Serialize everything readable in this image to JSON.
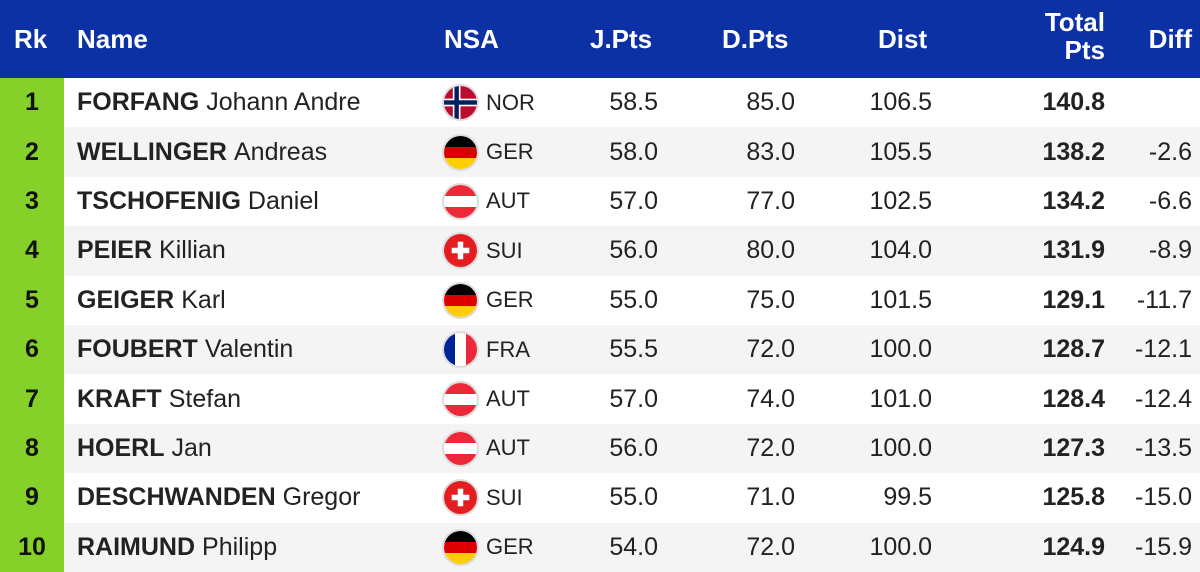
{
  "header": {
    "rk": "Rk",
    "name": "Name",
    "nsa": "NSA",
    "jpts": "J.Pts",
    "dpts": "D.Pts",
    "dist": "Dist",
    "total_line1": "Total",
    "total_line2": "Pts",
    "diff": "Diff"
  },
  "colors": {
    "header_bg": "#0b31a5",
    "rank_bg": "#85d12a",
    "row_alt_bg": "#f4f4f4"
  },
  "rows": [
    {
      "rank": "1",
      "last": "FORFANG",
      "first": "Johann Andre",
      "nsa": "NOR",
      "flag": "norway-flag-icon",
      "jpts": "58.5",
      "dpts": "85.0",
      "dist": "106.5",
      "total": "140.8",
      "diff": ""
    },
    {
      "rank": "2",
      "last": "WELLINGER",
      "first": "Andreas",
      "nsa": "GER",
      "flag": "germany-flag-icon",
      "jpts": "58.0",
      "dpts": "83.0",
      "dist": "105.5",
      "total": "138.2",
      "diff": "-2.6"
    },
    {
      "rank": "3",
      "last": "TSCHOFENIG",
      "first": "Daniel",
      "nsa": "AUT",
      "flag": "austria-flag-icon",
      "jpts": "57.0",
      "dpts": "77.0",
      "dist": "102.5",
      "total": "134.2",
      "diff": "-6.6"
    },
    {
      "rank": "4",
      "last": "PEIER",
      "first": "Killian",
      "nsa": "SUI",
      "flag": "switzerland-flag-icon",
      "jpts": "56.0",
      "dpts": "80.0",
      "dist": "104.0",
      "total": "131.9",
      "diff": "-8.9"
    },
    {
      "rank": "5",
      "last": "GEIGER",
      "first": "Karl",
      "nsa": "GER",
      "flag": "germany-flag-icon",
      "jpts": "55.0",
      "dpts": "75.0",
      "dist": "101.5",
      "total": "129.1",
      "diff": "-11.7"
    },
    {
      "rank": "6",
      "last": "FOUBERT",
      "first": "Valentin",
      "nsa": "FRA",
      "flag": "france-flag-icon",
      "jpts": "55.5",
      "dpts": "72.0",
      "dist": "100.0",
      "total": "128.7",
      "diff": "-12.1"
    },
    {
      "rank": "7",
      "last": "KRAFT",
      "first": "Stefan",
      "nsa": "AUT",
      "flag": "austria-flag-icon",
      "jpts": "57.0",
      "dpts": "74.0",
      "dist": "101.0",
      "total": "128.4",
      "diff": "-12.4"
    },
    {
      "rank": "8",
      "last": "HOERL",
      "first": "Jan",
      "nsa": "AUT",
      "flag": "austria-flag-icon",
      "jpts": "56.0",
      "dpts": "72.0",
      "dist": "100.0",
      "total": "127.3",
      "diff": "-13.5"
    },
    {
      "rank": "9",
      "last": "DESCHWANDEN",
      "first": "Gregor",
      "nsa": "SUI",
      "flag": "switzerland-flag-icon",
      "jpts": "55.0",
      "dpts": "71.0",
      "dist": "99.5",
      "total": "125.8",
      "diff": "-15.0"
    },
    {
      "rank": "10",
      "last": "RAIMUND",
      "first": "Philipp",
      "nsa": "GER",
      "flag": "germany-flag-icon",
      "jpts": "54.0",
      "dpts": "72.0",
      "dist": "100.0",
      "total": "124.9",
      "diff": "-15.9"
    }
  ]
}
